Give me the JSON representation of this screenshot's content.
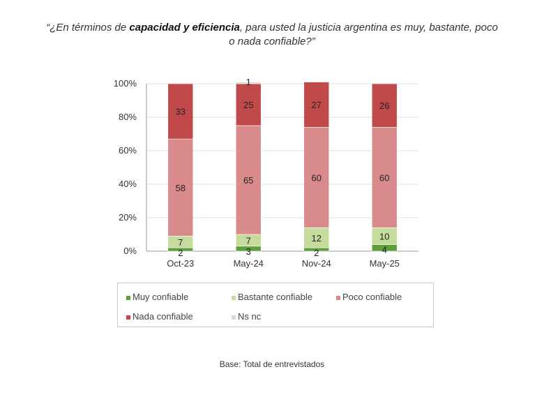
{
  "title": {
    "line1_pre": "“¿En términos de ",
    "line1_bold": "capacidad y eficiencia",
    "line1_post": ", para usted la justicia argentina es muy, bastante, poco",
    "line2": "o nada confiable?”"
  },
  "base_note": "Base: Total de entrevistados",
  "colors": {
    "muy": "#5e9e3c",
    "bastante": "#c5dc9c",
    "poco": "#d98a8a",
    "nada": "#c04a4a",
    "nsnc": "#d9d9d9",
    "grid": "#dcdcdc",
    "axis": "#9a9a9a"
  },
  "chart_data": {
    "type": "bar",
    "stacked": true,
    "categories": [
      "Oct-23",
      "May-24",
      "Nov-24",
      "May-25"
    ],
    "ylim": [
      0,
      100
    ],
    "y_ticks": [
      "0%",
      "20%",
      "40%",
      "60%",
      "80%",
      "100%"
    ],
    "series": [
      {
        "key": "muy",
        "name": "Muy confiable",
        "values": [
          2,
          3,
          2,
          4
        ],
        "labels": [
          "2",
          "3",
          "2",
          "4"
        ]
      },
      {
        "key": "bastante",
        "name": "Bastante confiable",
        "values": [
          7,
          7,
          12,
          10
        ],
        "labels": [
          "7",
          "7",
          "12",
          "10"
        ]
      },
      {
        "key": "poco",
        "name": "Poco confiable",
        "values": [
          58,
          65,
          60,
          60
        ],
        "labels": [
          "58",
          "65",
          "60",
          "60"
        ]
      },
      {
        "key": "nada",
        "name": "Nada confiable",
        "values": [
          33,
          25,
          27,
          26
        ],
        "labels": [
          "33",
          "25",
          "27",
          "26"
        ]
      },
      {
        "key": "nsnc",
        "name": "Ns nc",
        "values": [
          0,
          1,
          0,
          0
        ],
        "labels": [
          "",
          "1",
          "",
          ""
        ]
      }
    ],
    "legend_position": "bottom",
    "grid": true
  }
}
